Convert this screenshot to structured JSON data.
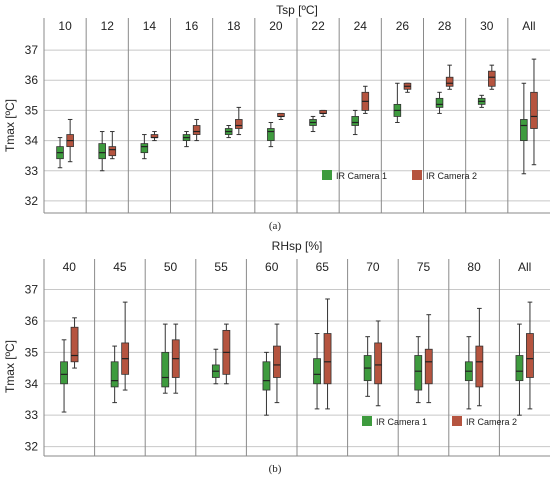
{
  "chart_data": [
    {
      "type": "box",
      "panel_label": "(a)",
      "title": "Tsp [ºC]",
      "ylabel": "Tmax [ºC]",
      "ylim": [
        31.6,
        37.4
      ],
      "yticks": [
        32,
        33,
        34,
        35,
        36,
        37
      ],
      "grid": true,
      "legend": "bottom-right",
      "categories": [
        "10",
        "12",
        "14",
        "16",
        "18",
        "20",
        "22",
        "24",
        "26",
        "28",
        "30",
        "All"
      ],
      "series": [
        {
          "name": "IR Camera 1",
          "color": "#3e9b3e",
          "boxes": [
            {
              "min": 33.1,
              "q1": 33.4,
              "median": 33.6,
              "q3": 33.8,
              "max": 34.1
            },
            {
              "min": 33.0,
              "q1": 33.4,
              "median": 33.6,
              "q3": 33.9,
              "max": 34.3
            },
            {
              "min": 33.4,
              "q1": 33.6,
              "median": 33.8,
              "q3": 33.9,
              "max": 34.2
            },
            {
              "min": 33.8,
              "q1": 34.0,
              "median": 34.1,
              "q3": 34.2,
              "max": 34.3
            },
            {
              "min": 34.1,
              "q1": 34.2,
              "median": 34.3,
              "q3": 34.4,
              "max": 34.5
            },
            {
              "min": 33.8,
              "q1": 34.0,
              "median": 34.3,
              "q3": 34.4,
              "max": 34.6
            },
            {
              "min": 34.3,
              "q1": 34.5,
              "median": 34.6,
              "q3": 34.7,
              "max": 34.8
            },
            {
              "min": 34.2,
              "q1": 34.5,
              "median": 34.6,
              "q3": 34.8,
              "max": 35.0
            },
            {
              "min": 34.6,
              "q1": 34.8,
              "median": 35.0,
              "q3": 35.2,
              "max": 35.9
            },
            {
              "min": 34.9,
              "q1": 35.1,
              "median": 35.2,
              "q3": 35.4,
              "max": 35.6
            },
            {
              "min": 35.1,
              "q1": 35.2,
              "median": 35.3,
              "q3": 35.4,
              "max": 35.5
            },
            {
              "min": 32.9,
              "q1": 34.0,
              "median": 34.5,
              "q3": 34.7,
              "max": 35.9
            }
          ]
        },
        {
          "name": "IR Camera 2",
          "color": "#b5543f",
          "boxes": [
            {
              "min": 33.3,
              "q1": 33.8,
              "median": 34.0,
              "q3": 34.2,
              "max": 34.7
            },
            {
              "min": 33.4,
              "q1": 33.5,
              "median": 33.7,
              "q3": 33.8,
              "max": 34.3
            },
            {
              "min": 34.0,
              "q1": 34.1,
              "median": 34.1,
              "q3": 34.2,
              "max": 34.3
            },
            {
              "min": 34.0,
              "q1": 34.2,
              "median": 34.3,
              "q3": 34.5,
              "max": 34.7
            },
            {
              "min": 34.2,
              "q1": 34.4,
              "median": 34.5,
              "q3": 34.7,
              "max": 35.1
            },
            {
              "min": 34.7,
              "q1": 34.8,
              "median": 34.8,
              "q3": 34.9,
              "max": 34.9
            },
            {
              "min": 34.8,
              "q1": 34.9,
              "median": 34.9,
              "q3": 35.0,
              "max": 35.0
            },
            {
              "min": 34.9,
              "q1": 35.0,
              "median": 35.3,
              "q3": 35.6,
              "max": 35.8
            },
            {
              "min": 35.6,
              "q1": 35.7,
              "median": 35.8,
              "q3": 35.9,
              "max": 35.9
            },
            {
              "min": 35.7,
              "q1": 35.8,
              "median": 35.9,
              "q3": 36.1,
              "max": 36.5
            },
            {
              "min": 35.7,
              "q1": 35.8,
              "median": 36.1,
              "q3": 36.3,
              "max": 36.5
            },
            {
              "min": 33.2,
              "q1": 34.4,
              "median": 34.8,
              "q3": 35.6,
              "max": 36.7
            }
          ]
        }
      ]
    },
    {
      "type": "box",
      "panel_label": "(b)",
      "title": "RHsp [%]",
      "ylabel": "Tmax [ºC]",
      "ylim": [
        31.7,
        37.4
      ],
      "yticks": [
        32,
        33,
        34,
        35,
        36,
        37
      ],
      "grid": true,
      "legend": "bottom-right",
      "categories": [
        "40",
        "45",
        "50",
        "55",
        "60",
        "65",
        "70",
        "75",
        "80",
        "All"
      ],
      "series": [
        {
          "name": "IR Camera 1",
          "color": "#3e9b3e",
          "boxes": [
            {
              "min": 33.1,
              "q1": 34.0,
              "median": 34.3,
              "q3": 34.7,
              "max": 35.4
            },
            {
              "min": 33.4,
              "q1": 33.9,
              "median": 34.1,
              "q3": 34.7,
              "max": 35.2
            },
            {
              "min": 33.7,
              "q1": 33.9,
              "median": 34.2,
              "q3": 35.0,
              "max": 35.9
            },
            {
              "min": 34.0,
              "q1": 34.2,
              "median": 34.4,
              "q3": 34.6,
              "max": 35.1
            },
            {
              "min": 33.0,
              "q1": 33.8,
              "median": 34.1,
              "q3": 34.7,
              "max": 35.0
            },
            {
              "min": 33.2,
              "q1": 34.0,
              "median": 34.3,
              "q3": 34.8,
              "max": 35.6
            },
            {
              "min": 33.6,
              "q1": 34.1,
              "median": 34.5,
              "q3": 34.9,
              "max": 35.5
            },
            {
              "min": 33.4,
              "q1": 33.8,
              "median": 34.4,
              "q3": 34.9,
              "max": 35.5
            },
            {
              "min": 33.2,
              "q1": 34.1,
              "median": 34.4,
              "q3": 34.7,
              "max": 35.5
            },
            {
              "min": 33.0,
              "q1": 34.1,
              "median": 34.4,
              "q3": 34.9,
              "max": 35.9
            }
          ]
        },
        {
          "name": "IR Camera 2",
          "color": "#b5543f",
          "boxes": [
            {
              "min": 34.5,
              "q1": 34.7,
              "median": 34.9,
              "q3": 35.8,
              "max": 36.1
            },
            {
              "min": 33.8,
              "q1": 34.3,
              "median": 34.8,
              "q3": 35.3,
              "max": 36.6
            },
            {
              "min": 33.7,
              "q1": 34.2,
              "median": 34.8,
              "q3": 35.4,
              "max": 35.9
            },
            {
              "min": 34.0,
              "q1": 34.3,
              "median": 35.0,
              "q3": 35.7,
              "max": 35.9
            },
            {
              "min": 33.4,
              "q1": 34.2,
              "median": 34.6,
              "q3": 35.2,
              "max": 35.9
            },
            {
              "min": 33.2,
              "q1": 34.0,
              "median": 34.7,
              "q3": 35.6,
              "max": 36.7
            },
            {
              "min": 33.3,
              "q1": 34.0,
              "median": 34.6,
              "q3": 35.3,
              "max": 36.0
            },
            {
              "min": 33.4,
              "q1": 34.0,
              "median": 34.7,
              "q3": 35.1,
              "max": 36.2
            },
            {
              "min": 33.3,
              "q1": 33.9,
              "median": 34.7,
              "q3": 35.2,
              "max": 36.4
            },
            {
              "min": 33.2,
              "q1": 34.2,
              "median": 34.8,
              "q3": 35.6,
              "max": 36.6
            }
          ]
        }
      ]
    }
  ]
}
